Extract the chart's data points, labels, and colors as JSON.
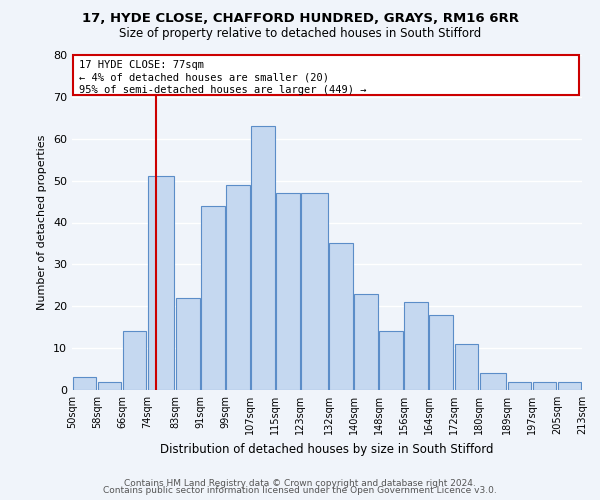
{
  "title1": "17, HYDE CLOSE, CHAFFORD HUNDRED, GRAYS, RM16 6RR",
  "title2": "Size of property relative to detached houses in South Stifford",
  "xlabel": "Distribution of detached houses by size in South Stifford",
  "ylabel": "Number of detached properties",
  "footer1": "Contains HM Land Registry data © Crown copyright and database right 2024.",
  "footer2": "Contains public sector information licensed under the Open Government Licence v3.0.",
  "bar_left_edges": [
    50,
    58,
    66,
    74,
    83,
    91,
    99,
    107,
    115,
    123,
    132,
    140,
    148,
    156,
    164,
    172,
    180,
    189,
    197,
    205
  ],
  "bar_widths": [
    8,
    8,
    8,
    9,
    8,
    8,
    8,
    8,
    8,
    9,
    8,
    8,
    8,
    8,
    8,
    8,
    9,
    8,
    8,
    8
  ],
  "bar_heights": [
    3,
    2,
    14,
    51,
    22,
    44,
    49,
    63,
    47,
    47,
    35,
    23,
    14,
    21,
    18,
    11,
    4,
    2,
    2,
    2
  ],
  "bar_color": "#c5d8f0",
  "bar_edge_color": "#5b8dc8",
  "tick_labels": [
    "50sqm",
    "58sqm",
    "66sqm",
    "74sqm",
    "83sqm",
    "91sqm",
    "99sqm",
    "107sqm",
    "115sqm",
    "123sqm",
    "132sqm",
    "140sqm",
    "148sqm",
    "156sqm",
    "164sqm",
    "172sqm",
    "180sqm",
    "189sqm",
    "197sqm",
    "205sqm",
    "213sqm"
  ],
  "ylim": [
    0,
    80
  ],
  "yticks": [
    0,
    10,
    20,
    30,
    40,
    50,
    60,
    70,
    80
  ],
  "vline_x": 77,
  "vline_color": "#cc0000",
  "annotation_title": "17 HYDE CLOSE: 77sqm",
  "annotation_line1": "← 4% of detached houses are smaller (20)",
  "annotation_line2": "95% of semi-detached houses are larger (449) →",
  "bg_color": "#f0f4fa"
}
